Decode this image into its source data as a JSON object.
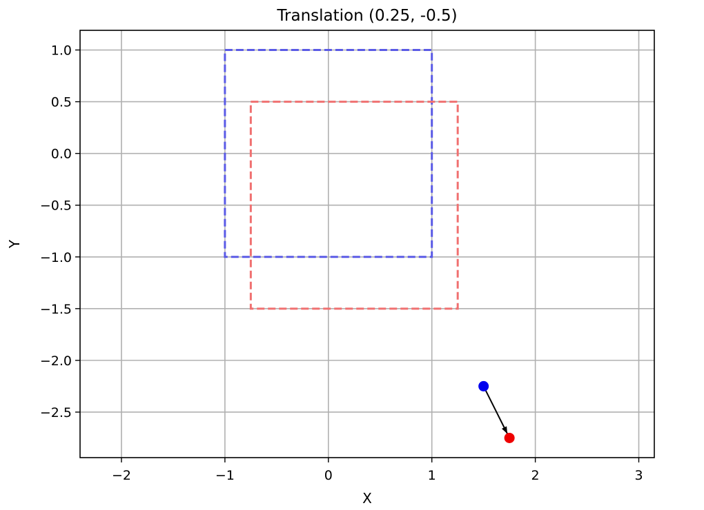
{
  "chart_data": {
    "type": "line",
    "title": "Translation (0.25, -0.5)",
    "xlabel": "X",
    "ylabel": "Y",
    "xlim": [
      -2.4,
      3.15
    ],
    "ylim": [
      -2.94,
      1.19
    ],
    "xticks": [
      -2,
      -1,
      0,
      1,
      2,
      3
    ],
    "yticks": [
      1.0,
      0.5,
      0.0,
      -0.5,
      -1.0,
      -1.5,
      -2.0,
      -2.5
    ],
    "xtick_labels": [
      "−2",
      "−1",
      "0",
      "1",
      "2",
      "3"
    ],
    "ytick_labels": [
      "1.0",
      "0.5",
      "0.0",
      "−0.5",
      "−1.0",
      "−1.5",
      "−2.0",
      "−2.5"
    ],
    "grid": true,
    "series": [
      {
        "style": "dashed",
        "color": "#5a5ae6",
        "x": [
          -1,
          1,
          1,
          -1,
          -1
        ],
        "y": [
          1,
          1,
          -1,
          -1,
          1
        ]
      },
      {
        "style": "dashed",
        "color": "#f07070",
        "x": [
          -0.75,
          1.25,
          1.25,
          -0.75,
          -0.75
        ],
        "y": [
          0.5,
          0.5,
          -1.5,
          -1.5,
          0.5
        ]
      }
    ],
    "points": [
      {
        "x": 1.5,
        "y": -2.25,
        "color": "#0000ee"
      },
      {
        "x": 1.75,
        "y": -2.75,
        "color": "#ee0000"
      }
    ],
    "arrow": {
      "from": [
        1.5,
        -2.25
      ],
      "to": [
        1.75,
        -2.75
      ],
      "color": "#000000"
    }
  }
}
